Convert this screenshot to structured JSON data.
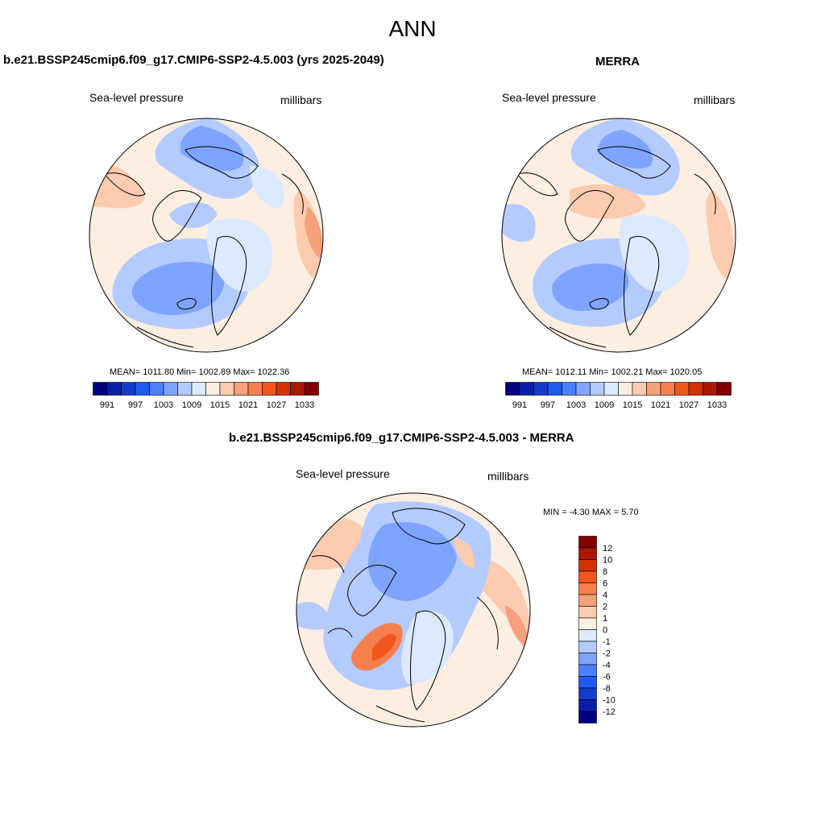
{
  "title": "ANN",
  "panels": [
    {
      "id": "model",
      "title": "b.e21.BSSP245cmip6.f09_g17.CMIP6-SSP2-4.5.003 (yrs 2025-2049)",
      "variable": "Sea-level pressure",
      "units": "millibars",
      "stats_text": "MEAN= 1011.80  Min= 1002.89  Max= 1022.36",
      "stats": {
        "mean": 1011.8,
        "min": 1002.89,
        "max": 1022.36
      }
    },
    {
      "id": "obs",
      "title": "MERRA",
      "variable": "Sea-level pressure",
      "units": "millibars",
      "stats_text": "MEAN= 1012.11  Min= 1002.21  Max= 1020.05",
      "stats": {
        "mean": 1012.11,
        "min": 1002.21,
        "max": 1020.05
      }
    },
    {
      "id": "diff",
      "title": "b.e21.BSSP245cmip6.f09_g17.CMIP6-SSP2-4.5.003 - MERRA",
      "variable": "Sea-level pressure",
      "units": "millibars",
      "stats_text": "MIN =  -4.30 MAX =   5.70",
      "stats": {
        "min": -4.3,
        "max": 5.7
      }
    }
  ],
  "abs_colorbar": {
    "colors": [
      "#00007f",
      "#0a1fa8",
      "#143ccc",
      "#1e5af0",
      "#4b80ff",
      "#7ea4ff",
      "#b4cbff",
      "#dce9ff",
      "#fdeee2",
      "#fdcbb0",
      "#f7a07c",
      "#f57f4f",
      "#f0561e",
      "#d33000",
      "#aa1800",
      "#800000"
    ],
    "tick_labels": [
      "991",
      "997",
      "1003",
      "1009",
      "1015",
      "1021",
      "1027",
      "1033"
    ]
  },
  "diff_colorbar": {
    "colors": [
      "#00007f",
      "#0a1fa8",
      "#143ccc",
      "#1e5af0",
      "#4b80ff",
      "#7ea4ff",
      "#b4cbff",
      "#dce9ff",
      "#fdeee2",
      "#fdcbb0",
      "#f7a07c",
      "#f57f4f",
      "#f0561e",
      "#d33000",
      "#aa1800",
      "#800000"
    ],
    "tick_labels": [
      "12",
      "10",
      "8",
      "6",
      "4",
      "2",
      "1",
      "0",
      "-1",
      "-2",
      "-4",
      "-6",
      "-8",
      "-10",
      "-12"
    ]
  }
}
